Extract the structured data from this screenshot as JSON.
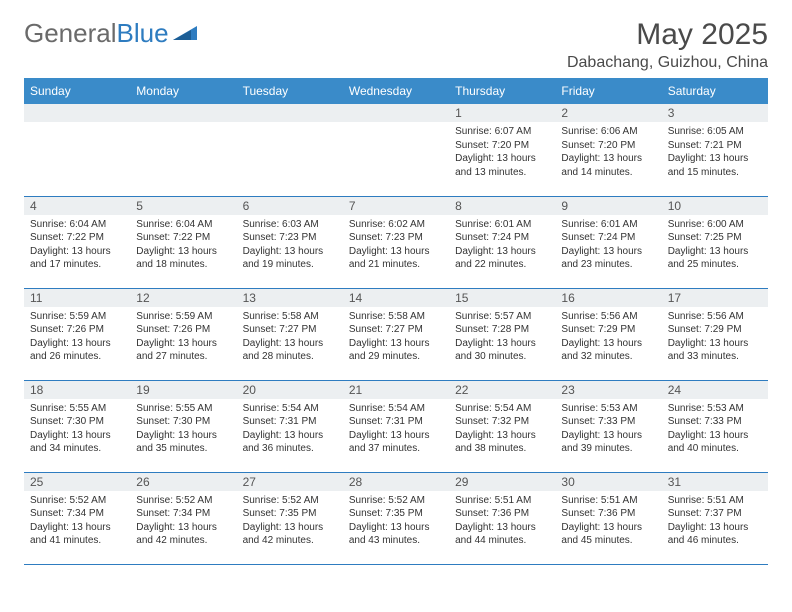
{
  "brand": {
    "general": "General",
    "blue": "Blue"
  },
  "title": "May 2025",
  "location": "Dabachang, Guizhou, China",
  "colors": {
    "header_bg": "#3a8bc9",
    "header_text": "#ffffff",
    "daynum_bg": "#eceff1",
    "row_border": "#2e7cc0",
    "page_bg": "#ffffff",
    "text": "#333333",
    "title_text": "#4a4a4a",
    "logo_gray": "#6a6a6a",
    "logo_blue": "#2e7cc0"
  },
  "weekdays": [
    "Sunday",
    "Monday",
    "Tuesday",
    "Wednesday",
    "Thursday",
    "Friday",
    "Saturday"
  ],
  "weeks": [
    [
      null,
      null,
      null,
      null,
      {
        "n": "1",
        "sr": "6:07 AM",
        "ss": "7:20 PM",
        "dl": "13 hours and 13 minutes."
      },
      {
        "n": "2",
        "sr": "6:06 AM",
        "ss": "7:20 PM",
        "dl": "13 hours and 14 minutes."
      },
      {
        "n": "3",
        "sr": "6:05 AM",
        "ss": "7:21 PM",
        "dl": "13 hours and 15 minutes."
      }
    ],
    [
      {
        "n": "4",
        "sr": "6:04 AM",
        "ss": "7:22 PM",
        "dl": "13 hours and 17 minutes."
      },
      {
        "n": "5",
        "sr": "6:04 AM",
        "ss": "7:22 PM",
        "dl": "13 hours and 18 minutes."
      },
      {
        "n": "6",
        "sr": "6:03 AM",
        "ss": "7:23 PM",
        "dl": "13 hours and 19 minutes."
      },
      {
        "n": "7",
        "sr": "6:02 AM",
        "ss": "7:23 PM",
        "dl": "13 hours and 21 minutes."
      },
      {
        "n": "8",
        "sr": "6:01 AM",
        "ss": "7:24 PM",
        "dl": "13 hours and 22 minutes."
      },
      {
        "n": "9",
        "sr": "6:01 AM",
        "ss": "7:24 PM",
        "dl": "13 hours and 23 minutes."
      },
      {
        "n": "10",
        "sr": "6:00 AM",
        "ss": "7:25 PM",
        "dl": "13 hours and 25 minutes."
      }
    ],
    [
      {
        "n": "11",
        "sr": "5:59 AM",
        "ss": "7:26 PM",
        "dl": "13 hours and 26 minutes."
      },
      {
        "n": "12",
        "sr": "5:59 AM",
        "ss": "7:26 PM",
        "dl": "13 hours and 27 minutes."
      },
      {
        "n": "13",
        "sr": "5:58 AM",
        "ss": "7:27 PM",
        "dl": "13 hours and 28 minutes."
      },
      {
        "n": "14",
        "sr": "5:58 AM",
        "ss": "7:27 PM",
        "dl": "13 hours and 29 minutes."
      },
      {
        "n": "15",
        "sr": "5:57 AM",
        "ss": "7:28 PM",
        "dl": "13 hours and 30 minutes."
      },
      {
        "n": "16",
        "sr": "5:56 AM",
        "ss": "7:29 PM",
        "dl": "13 hours and 32 minutes."
      },
      {
        "n": "17",
        "sr": "5:56 AM",
        "ss": "7:29 PM",
        "dl": "13 hours and 33 minutes."
      }
    ],
    [
      {
        "n": "18",
        "sr": "5:55 AM",
        "ss": "7:30 PM",
        "dl": "13 hours and 34 minutes."
      },
      {
        "n": "19",
        "sr": "5:55 AM",
        "ss": "7:30 PM",
        "dl": "13 hours and 35 minutes."
      },
      {
        "n": "20",
        "sr": "5:54 AM",
        "ss": "7:31 PM",
        "dl": "13 hours and 36 minutes."
      },
      {
        "n": "21",
        "sr": "5:54 AM",
        "ss": "7:31 PM",
        "dl": "13 hours and 37 minutes."
      },
      {
        "n": "22",
        "sr": "5:54 AM",
        "ss": "7:32 PM",
        "dl": "13 hours and 38 minutes."
      },
      {
        "n": "23",
        "sr": "5:53 AM",
        "ss": "7:33 PM",
        "dl": "13 hours and 39 minutes."
      },
      {
        "n": "24",
        "sr": "5:53 AM",
        "ss": "7:33 PM",
        "dl": "13 hours and 40 minutes."
      }
    ],
    [
      {
        "n": "25",
        "sr": "5:52 AM",
        "ss": "7:34 PM",
        "dl": "13 hours and 41 minutes."
      },
      {
        "n": "26",
        "sr": "5:52 AM",
        "ss": "7:34 PM",
        "dl": "13 hours and 42 minutes."
      },
      {
        "n": "27",
        "sr": "5:52 AM",
        "ss": "7:35 PM",
        "dl": "13 hours and 42 minutes."
      },
      {
        "n": "28",
        "sr": "5:52 AM",
        "ss": "7:35 PM",
        "dl": "13 hours and 43 minutes."
      },
      {
        "n": "29",
        "sr": "5:51 AM",
        "ss": "7:36 PM",
        "dl": "13 hours and 44 minutes."
      },
      {
        "n": "30",
        "sr": "5:51 AM",
        "ss": "7:36 PM",
        "dl": "13 hours and 45 minutes."
      },
      {
        "n": "31",
        "sr": "5:51 AM",
        "ss": "7:37 PM",
        "dl": "13 hours and 46 minutes."
      }
    ]
  ],
  "labels": {
    "sunrise": "Sunrise:",
    "sunset": "Sunset:",
    "daylight": "Daylight:"
  }
}
